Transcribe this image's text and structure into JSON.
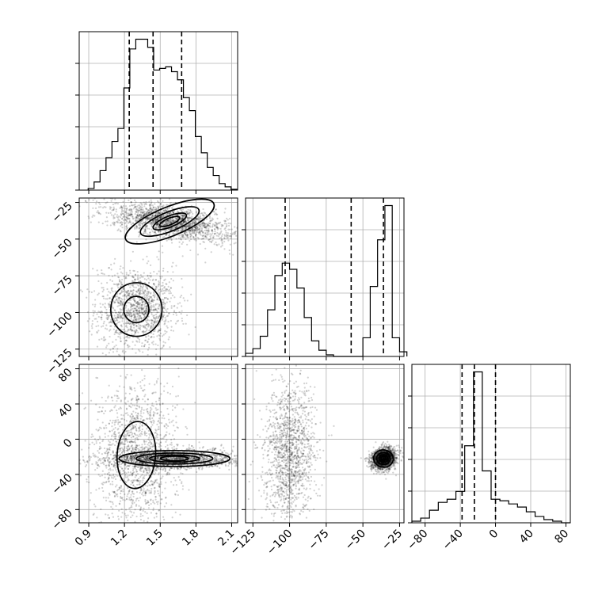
{
  "chart_data": {
    "type": "corner",
    "title": "",
    "grid": true,
    "parameters": [
      {
        "range": [
          0.82,
          2.15
        ],
        "ticks": [
          0.9,
          1.2,
          1.5,
          1.8,
          2.1
        ],
        "tick_labels": [
          "0.9",
          "1.2",
          "1.5",
          "1.8",
          "2.1"
        ],
        "quantiles": [
          1.24,
          1.44,
          1.68
        ]
      },
      {
        "range": [
          -130,
          -22
        ],
        "ticks": [
          -125,
          -100,
          -75,
          -50,
          -25
        ],
        "tick_labels": [
          "−125",
          "−100",
          "−75",
          "−50",
          "−25"
        ],
        "quantiles": [
          -103,
          -58,
          -36
        ]
      },
      {
        "range": [
          -95,
          85
        ],
        "ticks": [
          -80,
          -40,
          0,
          40,
          80
        ],
        "tick_labels": [
          "−80",
          "−40",
          "0",
          "40",
          "80"
        ],
        "quantiles": [
          -38,
          -24,
          0
        ]
      }
    ],
    "histograms": [
      {
        "param": 0,
        "x": [
          0.92,
          0.97,
          1.02,
          1.07,
          1.12,
          1.17,
          1.22,
          1.27,
          1.32,
          1.37,
          1.42,
          1.47,
          1.52,
          1.57,
          1.62,
          1.67,
          1.72,
          1.77,
          1.82,
          1.87,
          1.92,
          1.97,
          2.02,
          2.07,
          2.12
        ],
        "counts": [
          0.01,
          0.05,
          0.12,
          0.2,
          0.3,
          0.38,
          0.63,
          0.87,
          0.93,
          0.93,
          0.88,
          0.74,
          0.75,
          0.76,
          0.73,
          0.68,
          0.57,
          0.49,
          0.33,
          0.23,
          0.14,
          0.09,
          0.04,
          0.02,
          0.005
        ]
      },
      {
        "param": 1,
        "x": [
          -127.5,
          -122.5,
          -117.5,
          -112.5,
          -107.5,
          -102.5,
          -97.5,
          -92.5,
          -87.5,
          -82.5,
          -77.5,
          -72.5,
          -67.5,
          -62.5,
          -57.5,
          -52.5,
          -47.5,
          -42.5,
          -37.5,
          -32.5,
          -27.5,
          -22.5
        ],
        "counts": [
          0.02,
          0.05,
          0.13,
          0.3,
          0.52,
          0.6,
          0.56,
          0.44,
          0.25,
          0.1,
          0.04,
          0.01,
          0,
          0,
          0,
          0,
          0.12,
          0.45,
          0.75,
          0.97,
          0.12,
          0.03
        ]
      },
      {
        "param": 2,
        "x": [
          -90,
          -80,
          -70,
          -60,
          -50,
          -40,
          -30,
          -20,
          -10,
          0,
          10,
          20,
          30,
          40,
          50,
          60,
          70,
          80
        ],
        "counts": [
          0.01,
          0.03,
          0.08,
          0.13,
          0.15,
          0.2,
          0.49,
          0.96,
          0.33,
          0.15,
          0.14,
          0.12,
          0.1,
          0.07,
          0.04,
          0.02,
          0.01,
          0.0
        ]
      }
    ],
    "pairs": [
      {
        "x_param": 0,
        "y_param": 1,
        "modes": [
          {
            "cx": 1.58,
            "cy": -38,
            "sx": 0.16,
            "sy": 4.0,
            "rho": -0.55,
            "weight": 0.58
          },
          {
            "cx": 1.3,
            "cy": -98,
            "sx": 0.1,
            "sy": 8.5,
            "rho": 0.05,
            "weight": 0.42
          }
        ]
      },
      {
        "x_param": 0,
        "y_param": 2,
        "modes": [
          {
            "cx": 1.62,
            "cy": -22,
            "sx": 0.18,
            "sy": 3.5,
            "rho": 0.0,
            "weight": 0.55
          },
          {
            "cx": 1.3,
            "cy": -18,
            "sx": 0.11,
            "sy": 26,
            "rho": 0.1,
            "weight": 0.45
          }
        ]
      },
      {
        "x_param": 1,
        "y_param": 2,
        "modes": [
          {
            "cx": -36,
            "cy": -22,
            "sx": 2.6,
            "sy": 3.8,
            "rho": 0.2,
            "weight": 0.55
          },
          {
            "cx": -100,
            "cy": -18,
            "sx": 5.5,
            "sy": 26,
            "rho": 0.05,
            "weight": 0.45
          }
        ]
      }
    ]
  }
}
